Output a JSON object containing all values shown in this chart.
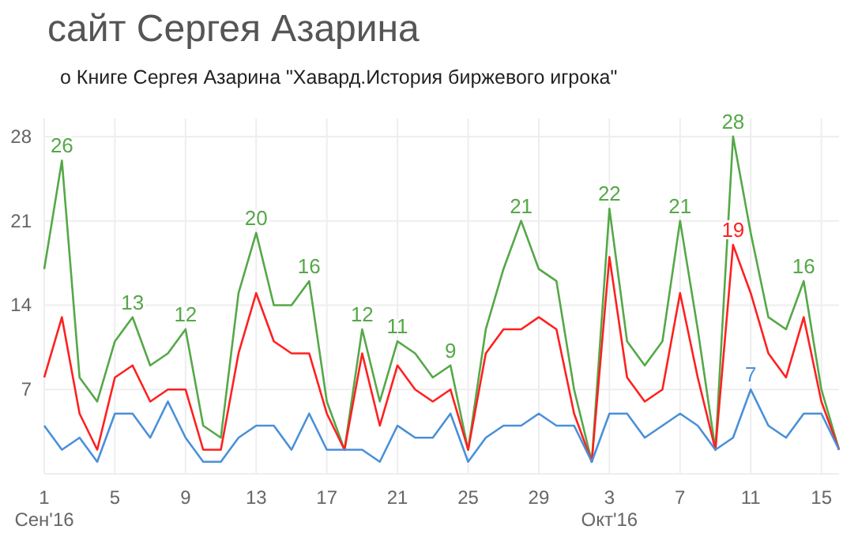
{
  "chart_data": {
    "type": "line",
    "title": "сайт Сергея Азарина",
    "subtitle": "о Книге Сергея Азарина \"Хавард.История биржевого игрока\"",
    "x": [
      "2016-09-01",
      "2016-09-02",
      "2016-09-03",
      "2016-09-04",
      "2016-09-05",
      "2016-09-06",
      "2016-09-07",
      "2016-09-08",
      "2016-09-09",
      "2016-09-10",
      "2016-09-11",
      "2016-09-12",
      "2016-09-13",
      "2016-09-14",
      "2016-09-15",
      "2016-09-16",
      "2016-09-17",
      "2016-09-18",
      "2016-09-19",
      "2016-09-20",
      "2016-09-21",
      "2016-09-22",
      "2016-09-23",
      "2016-09-24",
      "2016-09-25",
      "2016-09-26",
      "2016-09-27",
      "2016-09-28",
      "2016-09-29",
      "2016-09-30",
      "2016-10-01",
      "2016-10-02",
      "2016-10-03",
      "2016-10-04",
      "2016-10-05",
      "2016-10-06",
      "2016-10-07",
      "2016-10-08",
      "2016-10-09",
      "2016-10-10",
      "2016-10-11",
      "2016-10-12",
      "2016-10-13",
      "2016-10-14",
      "2016-10-15",
      "2016-10-16"
    ],
    "series": [
      {
        "color": "#55a848",
        "values": [
          17,
          26,
          8,
          6,
          11,
          13,
          9,
          10,
          12,
          4,
          3,
          15,
          20,
          14,
          14,
          16,
          6,
          2,
          12,
          6,
          11,
          10,
          8,
          9,
          2,
          12,
          17,
          21,
          17,
          16,
          7,
          1,
          22,
          11,
          9,
          11,
          21,
          12,
          2,
          28,
          20,
          13,
          12,
          16,
          7,
          2
        ],
        "value_labels": [
          null,
          "26",
          null,
          null,
          null,
          "13",
          null,
          null,
          "12",
          null,
          null,
          null,
          "20",
          null,
          null,
          "16",
          null,
          null,
          "12",
          null,
          "11",
          null,
          null,
          "9",
          null,
          null,
          null,
          "21",
          null,
          null,
          null,
          null,
          "22",
          null,
          null,
          null,
          "21",
          null,
          null,
          "28",
          null,
          null,
          null,
          "16",
          null,
          null
        ]
      },
      {
        "color": "#ff2020",
        "values": [
          8,
          13,
          5,
          2,
          8,
          9,
          6,
          7,
          7,
          2,
          2,
          10,
          15,
          11,
          10,
          10,
          5,
          2,
          10,
          4,
          9,
          7,
          6,
          7,
          2,
          10,
          12,
          12,
          13,
          12,
          5,
          1,
          18,
          8,
          6,
          7,
          15,
          8,
          2,
          19,
          15,
          10,
          8,
          13,
          6,
          2
        ],
        "value_labels": [
          null,
          null,
          null,
          null,
          null,
          null,
          null,
          null,
          null,
          null,
          null,
          null,
          null,
          null,
          null,
          null,
          null,
          null,
          null,
          null,
          null,
          null,
          null,
          null,
          null,
          null,
          null,
          null,
          null,
          null,
          null,
          null,
          null,
          null,
          null,
          null,
          null,
          null,
          null,
          "19",
          null,
          null,
          null,
          null,
          null,
          null
        ]
      },
      {
        "color": "#4a90d9",
        "values": [
          4,
          2,
          3,
          1,
          5,
          5,
          3,
          6,
          3,
          1,
          1,
          3,
          4,
          4,
          2,
          5,
          2,
          2,
          2,
          1,
          4,
          3,
          3,
          5,
          1,
          3,
          4,
          4,
          5,
          4,
          4,
          1,
          5,
          5,
          3,
          4,
          5,
          4,
          2,
          3,
          7,
          4,
          3,
          5,
          5,
          2
        ],
        "value_labels": [
          null,
          null,
          null,
          null,
          null,
          null,
          null,
          null,
          null,
          null,
          null,
          null,
          null,
          null,
          null,
          null,
          null,
          null,
          null,
          null,
          null,
          null,
          null,
          null,
          null,
          null,
          null,
          null,
          null,
          null,
          null,
          null,
          null,
          null,
          null,
          null,
          null,
          null,
          null,
          null,
          "7",
          null,
          null,
          null,
          null,
          null
        ]
      }
    ],
    "xlim": [
      "2016-09-01",
      "2016-10-16"
    ],
    "xticks": [
      {
        "value": "2016-09-01",
        "label": "1\nСен'16"
      },
      {
        "value": "2016-09-05",
        "label": "5"
      },
      {
        "value": "2016-09-09",
        "label": "9"
      },
      {
        "value": "2016-09-13",
        "label": "13"
      },
      {
        "value": "2016-09-17",
        "label": "17"
      },
      {
        "value": "2016-09-21",
        "label": "21"
      },
      {
        "value": "2016-09-25",
        "label": "25"
      },
      {
        "value": "2016-09-29",
        "label": "29"
      },
      {
        "value": "2016-10-03",
        "label": "3\nОкт'16"
      },
      {
        "value": "2016-10-07",
        "label": "7"
      },
      {
        "value": "2016-10-11",
        "label": "11"
      },
      {
        "value": "2016-10-15",
        "label": "15"
      }
    ],
    "ylim": [
      0,
      29.5
    ],
    "yticks": [
      7,
      14,
      21,
      28
    ],
    "grid": true,
    "marker": "none",
    "line_style": "solid"
  }
}
